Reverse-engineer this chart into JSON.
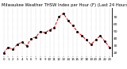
{
  "title": "Milwaukee Weather THSW Index per Hour (F) (Last 24 Hours)",
  "x": [
    0,
    1,
    2,
    3,
    4,
    5,
    6,
    7,
    8,
    9,
    10,
    11,
    12,
    13,
    14,
    15,
    16,
    17,
    18,
    19,
    20,
    21,
    22,
    23
  ],
  "y": [
    20,
    28,
    25,
    32,
    35,
    30,
    40,
    42,
    50,
    48,
    52,
    55,
    70,
    75,
    65,
    58,
    50,
    44,
    38,
    32,
    38,
    44,
    36,
    28
  ],
  "line_color": "#dd0000",
  "marker_color": "#000000",
  "bg_color": "#ffffff",
  "grid_color": "#888888",
  "title_color": "#000000",
  "title_fontsize": 3.8,
  "ylim": [
    15,
    82
  ],
  "yticks": [
    20,
    30,
    40,
    50,
    60,
    70
  ],
  "ylabel_fontsize": 3.2,
  "xlabel_fontsize": 2.8
}
